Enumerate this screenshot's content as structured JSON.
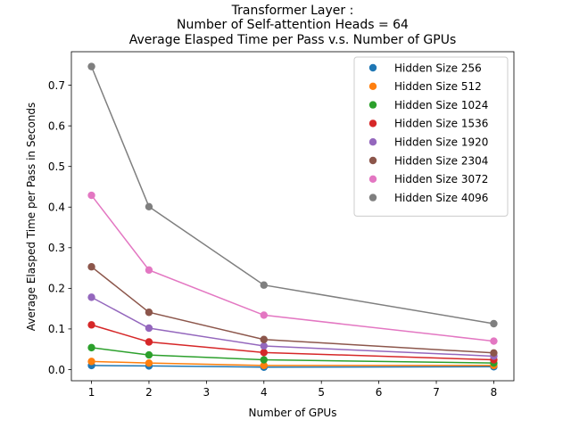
{
  "chart_data": {
    "type": "line",
    "title_lines": [
      "Transformer Layer :",
      "Number of Self-attention Heads = 64",
      "Average Elasped Time per Pass v.s. Number of GPUs"
    ],
    "xlabel": "Number of GPUs",
    "ylabel": "Average Elasped Time per Pass in Seconds",
    "x": [
      1,
      2,
      4,
      8
    ],
    "xlim": [
      0.65,
      8.35
    ],
    "ylim": [
      -0.0275,
      0.7825
    ],
    "xticks": [
      1,
      2,
      3,
      4,
      5,
      6,
      7,
      8
    ],
    "yticks": [
      0.0,
      0.1,
      0.2,
      0.3,
      0.4,
      0.5,
      0.6,
      0.7
    ],
    "xtick_labels": [
      "1",
      "2",
      "3",
      "4",
      "5",
      "6",
      "7",
      "8"
    ],
    "ytick_labels": [
      "0.0",
      "0.1",
      "0.2",
      "0.3",
      "0.4",
      "0.5",
      "0.6",
      "0.7"
    ],
    "grid": false,
    "legend_position": "upper right",
    "series": [
      {
        "name": "Hidden Size 256",
        "color": "#1f77b4",
        "values": [
          0.01,
          0.009,
          0.006,
          0.007
        ]
      },
      {
        "name": "Hidden Size 512",
        "color": "#ff7f0e",
        "values": [
          0.02,
          0.016,
          0.01,
          0.01
        ]
      },
      {
        "name": "Hidden Size 1024",
        "color": "#2ca02c",
        "values": [
          0.054,
          0.036,
          0.024,
          0.016
        ]
      },
      {
        "name": "Hidden Size 1536",
        "color": "#d62728",
        "values": [
          0.11,
          0.068,
          0.042,
          0.024
        ]
      },
      {
        "name": "Hidden Size 1920",
        "color": "#9467bd",
        "values": [
          0.178,
          0.102,
          0.058,
          0.033
        ]
      },
      {
        "name": "Hidden Size 2304",
        "color": "#8c564b",
        "values": [
          0.253,
          0.141,
          0.074,
          0.041
        ]
      },
      {
        "name": "Hidden Size 3072",
        "color": "#e377c2",
        "values": [
          0.429,
          0.245,
          0.134,
          0.07
        ]
      },
      {
        "name": "Hidden Size 4096",
        "color": "#7f7f7f",
        "values": [
          0.746,
          0.401,
          0.208,
          0.113
        ]
      }
    ]
  }
}
